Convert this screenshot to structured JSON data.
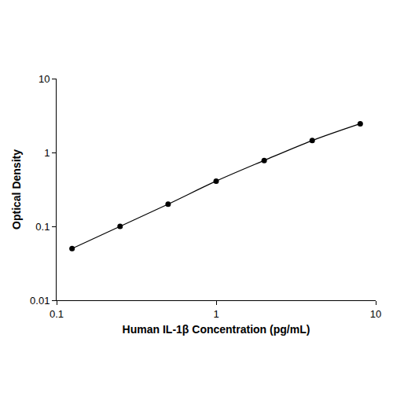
{
  "chart_data": {
    "type": "line",
    "x_label": "Human IL-1β Concentration (pg/mL)",
    "y_label": "Optical Density",
    "x": [
      0.125,
      0.25,
      0.5,
      1,
      2,
      4,
      8
    ],
    "values": [
      0.05,
      0.1,
      0.2,
      0.41,
      0.78,
      1.45,
      2.45
    ],
    "color": "#000000",
    "marker": "circle",
    "line_style": "solid",
    "log": true,
    "grid": false,
    "xlim": [
      0.1,
      10
    ],
    "xticks": [
      0.1,
      1,
      10
    ],
    "ylim": [
      0.01,
      10
    ],
    "yticks": [
      0.01,
      0.1,
      1,
      10
    ]
  }
}
